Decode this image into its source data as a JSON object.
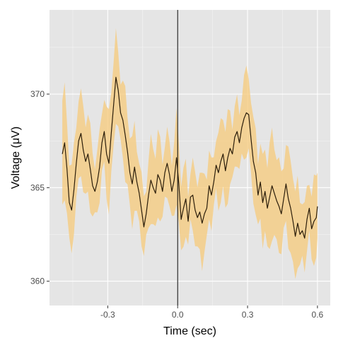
{
  "chart_data": {
    "type": "line",
    "title": "",
    "xlabel": "Time (sec)",
    "ylabel": "Voltage (μV)",
    "xlim": [
      -0.55,
      0.655
    ],
    "ylim": [
      358.7,
      374.5
    ],
    "x_ticks": [
      -0.3,
      0.0,
      0.3,
      0.6
    ],
    "x_tick_labels": [
      "-0.3",
      "0.0",
      "0.3",
      "0.6"
    ],
    "y_ticks": [
      360,
      365,
      370
    ],
    "y_tick_labels": [
      "360",
      "365",
      "370"
    ],
    "vline_x": 0.0,
    "grid": true,
    "legend": "none",
    "colors": {
      "panel_bg": "#e5e5e5",
      "grid": "#ffffff",
      "ribbon": "#f5c97a",
      "line": "#2b1d0a",
      "vline": "#000000"
    },
    "series": [
      {
        "x": [
          -0.495,
          -0.485,
          -0.475,
          -0.465,
          -0.455,
          -0.445,
          -0.435,
          -0.425,
          -0.415,
          -0.405,
          -0.395,
          -0.385,
          -0.375,
          -0.365,
          -0.355,
          -0.345,
          -0.335,
          -0.325,
          -0.315,
          -0.305,
          -0.295,
          -0.285,
          -0.275,
          -0.265,
          -0.255,
          -0.245,
          -0.235,
          -0.225,
          -0.215,
          -0.205,
          -0.195,
          -0.185,
          -0.175,
          -0.165,
          -0.155,
          -0.145,
          -0.135,
          -0.125,
          -0.115,
          -0.105,
          -0.095,
          -0.085,
          -0.075,
          -0.065,
          -0.055,
          -0.045,
          -0.035,
          -0.025,
          -0.015,
          -0.005,
          0.005,
          0.015,
          0.025,
          0.035,
          0.045,
          0.055,
          0.065,
          0.075,
          0.085,
          0.095,
          0.105,
          0.115,
          0.125,
          0.135,
          0.145,
          0.155,
          0.165,
          0.175,
          0.185,
          0.195,
          0.205,
          0.215,
          0.225,
          0.235,
          0.245,
          0.255,
          0.265,
          0.275,
          0.285,
          0.295,
          0.305,
          0.315,
          0.325,
          0.335,
          0.345,
          0.355,
          0.365,
          0.375,
          0.385,
          0.395,
          0.405,
          0.415,
          0.425,
          0.435,
          0.445,
          0.455,
          0.465,
          0.475,
          0.485,
          0.495,
          0.505,
          0.515,
          0.525,
          0.535,
          0.545,
          0.555,
          0.565,
          0.575,
          0.585,
          0.595,
          0.6
        ],
        "y": [
          366.8,
          367.4,
          366.0,
          364.2,
          363.8,
          364.9,
          366.3,
          367.5,
          367.9,
          367.0,
          366.4,
          366.8,
          366.0,
          365.1,
          364.8,
          365.3,
          366.1,
          367.4,
          368.0,
          366.8,
          366.3,
          367.9,
          369.4,
          370.9,
          370.2,
          369.0,
          368.6,
          367.8,
          366.9,
          365.8,
          365.2,
          366.1,
          365.3,
          364.7,
          363.8,
          362.9,
          363.6,
          364.6,
          365.4,
          365.0,
          364.7,
          365.7,
          365.4,
          364.8,
          365.8,
          366.3,
          365.7,
          364.8,
          365.4,
          366.6,
          365.2,
          363.3,
          363.9,
          364.4,
          363.2,
          364.5,
          364.6,
          363.8,
          363.4,
          363.7,
          363.1,
          363.6,
          363.9,
          365.1,
          364.6,
          365.3,
          366.2,
          365.8,
          366.4,
          366.8,
          365.9,
          366.6,
          367.1,
          366.8,
          367.7,
          368.0,
          367.4,
          368.2,
          368.7,
          369.0,
          368.9,
          367.6,
          366.4,
          365.8,
          364.6,
          365.3,
          364.2,
          364.8,
          363.9,
          364.5,
          365.1,
          364.7,
          364.3,
          364.0,
          363.6,
          364.4,
          365.2,
          364.4,
          363.9,
          363.2,
          362.4,
          363.1,
          362.5,
          362.7,
          362.3,
          363.3,
          363.9,
          362.8,
          363.2,
          363.4,
          364.0
        ]
      }
    ]
  }
}
